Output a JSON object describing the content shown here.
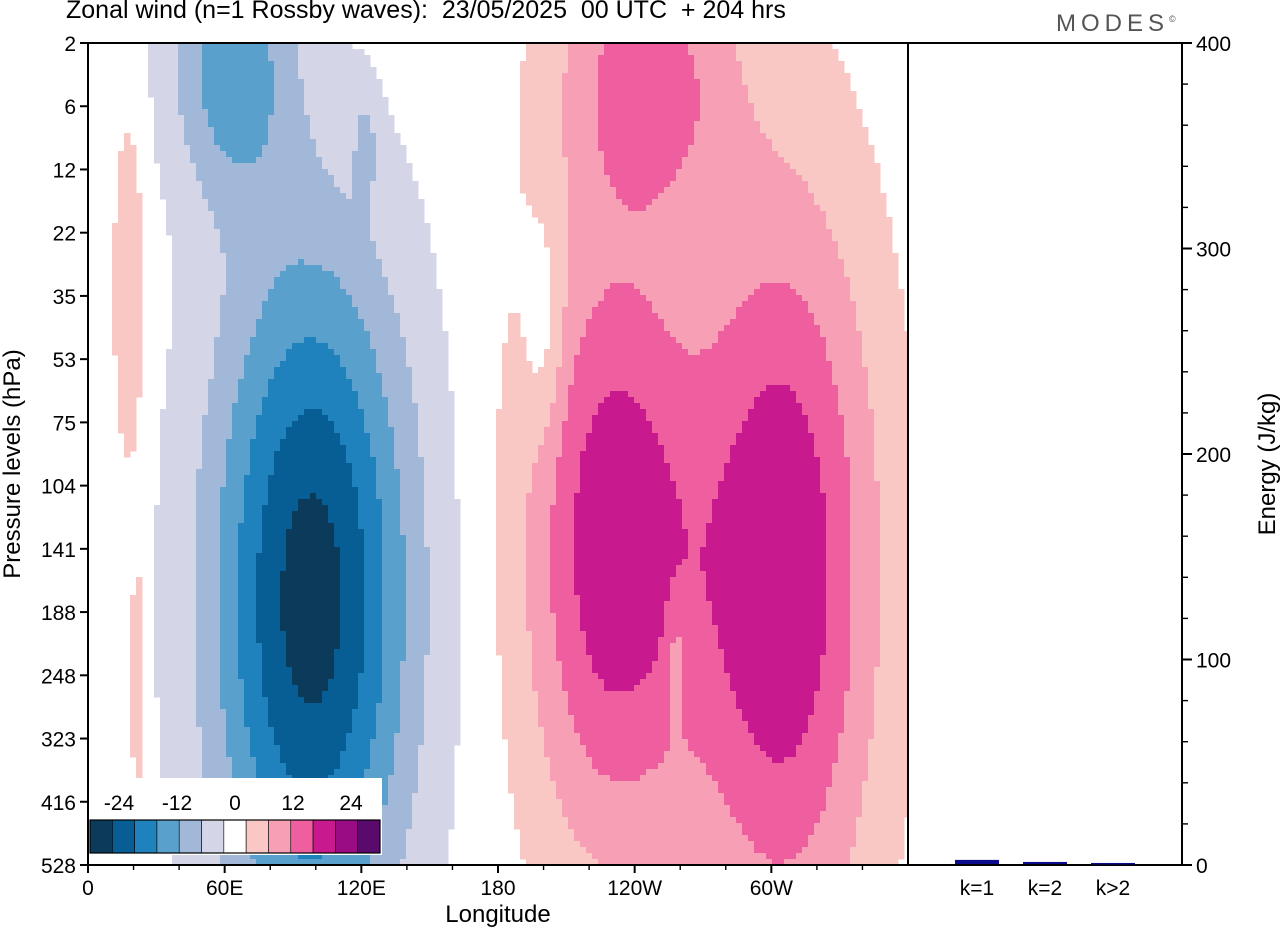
{
  "header": {
    "title": "Zonal wind (n=1 Rossby waves):  23/05/2025  00 UTC  + 204 hrs",
    "logo": "MODES",
    "logo_mark": "©"
  },
  "colors": {
    "neg": [
      "#0b3a5a",
      "#075e94",
      "#1f82bc",
      "#5aa0cd",
      "#a2b8d9",
      "#d4d6e8"
    ],
    "zero": "#ffffff",
    "pos": [
      "#f9c8c4",
      "#f69fb5",
      "#ef5f9f",
      "#c81a8e",
      "#9a0c84",
      "#5a0a6c"
    ],
    "bar": "#0a0a8a"
  },
  "chart_data": [
    {
      "type": "heatmap",
      "xlabel": "Longitude",
      "ylabel": "Pressure levels (hPa)",
      "x_ticks": [
        "0",
        "60E",
        "120E",
        "180",
        "120W",
        "60W"
      ],
      "y_ticks": [
        "2",
        "6",
        "12",
        "22",
        "35",
        "53",
        "75",
        "104",
        "141",
        "188",
        "248",
        "323",
        "416",
        "528"
      ],
      "colorbar": {
        "labels": [
          "-24",
          "-12",
          "0",
          "12",
          "24"
        ],
        "levels": [
          -30,
          -25,
          -20,
          -15,
          -10,
          -5,
          0,
          5,
          10,
          15,
          20,
          25,
          30
        ]
      },
      "blobs": [
        {
          "lon": 63,
          "lev": 0.3,
          "rx": 27,
          "ry": 2.2,
          "value": -15
        },
        {
          "lon": 98,
          "lev": 8.8,
          "rx": 44,
          "ry": 5.6,
          "value": -30
        },
        {
          "lon": 122,
          "lev": 1.6,
          "rx": 5,
          "ry": 0.8,
          "value": -6
        },
        {
          "lon": 18,
          "lev": 4.0,
          "rx": 7,
          "ry": 3.0,
          "value": 7
        },
        {
          "lon": 245,
          "lev": 0.5,
          "rx": 38,
          "ry": 2.2,
          "value": 14
        },
        {
          "lon": 200,
          "lev": 4.6,
          "rx": 9,
          "ry": 1.8,
          "value": -6
        },
        {
          "lon": 230,
          "lev": 7.9,
          "rx": 38,
          "ry": 5.0,
          "value": 21
        },
        {
          "lon": 305,
          "lev": 8.4,
          "rx": 41,
          "ry": 6.0,
          "value": 22
        },
        {
          "lon": 258,
          "lev": 9.9,
          "rx": 4,
          "ry": 1.0,
          "value": -6
        },
        {
          "lon": 22,
          "lev": 10.1,
          "rx": 4,
          "ry": 2.0,
          "value": 7
        }
      ]
    },
    {
      "type": "bar",
      "categories": [
        "k=1",
        "k=2",
        "k>2"
      ],
      "values": [
        2,
        1,
        0.5
      ],
      "ylabel": "Energy (J/kg)",
      "ylim": [
        0,
        400
      ],
      "y_ticks": [
        "0",
        "100",
        "200",
        "300",
        "400"
      ]
    }
  ]
}
